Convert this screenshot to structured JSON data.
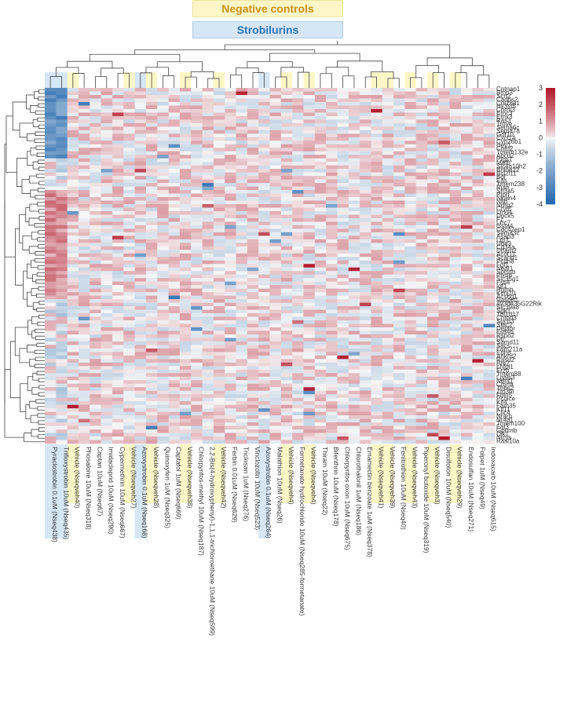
{
  "legend": {
    "negative_controls_label": "Negative controls",
    "strobilurins_label": "Strobilurins",
    "negative_color": "#fdf7c7",
    "strobilurin_color": "#d6e6f4"
  },
  "chart_data": {
    "type": "heatmap",
    "title": "",
    "colorbar": {
      "ticks": [
        3,
        2,
        1,
        0,
        -1,
        -2,
        -3,
        -4
      ],
      "range": [
        -4,
        3
      ],
      "low_color": "#2166ac",
      "mid_color": "#f7f7f7",
      "high_color": "#b2182b"
    },
    "columns": [
      {
        "label": "Pyraclostrobin 0.1uM (Nseq438)",
        "group": "strobilurin"
      },
      {
        "label": "Trifloxystrobin 10uM (Nseq435)",
        "group": "strobilurin"
      },
      {
        "label": "Vehicle (Nseqveh40)",
        "group": "negative"
      },
      {
        "label": "Phosalone 10uM (Nseq318)",
        "group": ""
      },
      {
        "label": "Captan 10uM (Nseq67)",
        "group": ""
      },
      {
        "label": "Imidacloprid 10uM (Nseq290)",
        "group": ""
      },
      {
        "label": "Cypermethrin 10uM (Nseq667)",
        "group": ""
      },
      {
        "label": "Vehicle (Nseqveh27)",
        "group": "negative"
      },
      {
        "label": "Azoxystrobin 0.1uM (Nseq168)",
        "group": "strobilurin"
      },
      {
        "label": "Vehicle (Nseqveh28)",
        "group": "negative"
      },
      {
        "label": "Quinoxyfen 1uM (Nseq325)",
        "group": ""
      },
      {
        "label": "Captafol 1uM (Nseq669)",
        "group": ""
      },
      {
        "label": "Vehicle (Nseqveh38)",
        "group": "negative"
      },
      {
        "label": "Chlorpyrifos-methyl 10uM (Nseq187)",
        "group": ""
      },
      {
        "label": "2,2-Bis(4-hydroxyphenyl)-1,1,1-trichloroethane 10uM (Nseq599)",
        "group": ""
      },
      {
        "label": "Vehicle (Nseqveh42)",
        "group": "negative"
      },
      {
        "label": "Ferbin 0.01uM (Nseq629)",
        "group": ""
      },
      {
        "label": "Triclosan 1uM (Nseq276)",
        "group": ""
      },
      {
        "label": "Vinclozolin 10uM (Nseq523)",
        "group": ""
      },
      {
        "label": "Azoxystrobin 0.1uM (Nseq264)",
        "group": "strobilurin"
      },
      {
        "label": "Malathion 10uM (Nseq26)",
        "group": ""
      },
      {
        "label": "Vehicle (Nseqveh4)",
        "group": "negative"
      },
      {
        "label": "Formetanate hydrochloride 10uM (Nseq285-formetanate)",
        "group": ""
      },
      {
        "label": "Vehicle (Nseqveh4)",
        "group": "negative"
      },
      {
        "label": "Thiram 10uM (Nseq22)",
        "group": ""
      },
      {
        "label": "Bifenthrin 10uM (Nseq178)",
        "group": ""
      },
      {
        "label": "Chlorpyrifos oxon 10uM (Nseq675)",
        "group": ""
      },
      {
        "label": "Chlorothalonil 1uM (Nseq186)",
        "group": ""
      },
      {
        "label": "Emamectin benzoate 1uM (Nseq378)",
        "group": ""
      },
      {
        "label": "Vehicle (Nseqveh41)",
        "group": "negative"
      },
      {
        "label": "Vehicle (Nseqveh39)",
        "group": "negative"
      },
      {
        "label": "Fenitrothion 10uM (Nseq40)",
        "group": ""
      },
      {
        "label": "Vehicle (Nseqveh43)",
        "group": "negative"
      },
      {
        "label": "Piperonyl butoxide 10uM (Nseq319)",
        "group": ""
      },
      {
        "label": "Vehicle (Nseqveh3)",
        "group": "negative"
      },
      {
        "label": "Disulfoton 10uM (Nseq540)",
        "group": ""
      },
      {
        "label": "Vehicle (Nseqveh29)",
        "group": "negative"
      },
      {
        "label": "Endosulfan 10uM (Nseq271)",
        "group": ""
      },
      {
        "label": "Folpet 1uM (Nseq49)",
        "group": ""
      },
      {
        "label": "Indoxacarb 10uM (Nseq615)",
        "group": ""
      }
    ],
    "rows": [
      "Cntnap1",
      "Bmp3",
      "Scrt2",
      "Cadps2",
      "Col18a1",
      "Hs3st5",
      "Chrm3",
      "Emc3",
      "Emx3",
      "Ras3",
      "Trove",
      "Sema6c",
      "Sema7a",
      "Gdf10",
      "Cxcl14",
      "Cyp26b1",
      "Hey1",
      "Cntn2",
      "Tmem132e",
      "Abcd2",
      "Ptgs1",
      "Mafb",
      "Slc4a10h2",
      "Bhlhe22",
      "Bcl2l11",
      "Bdl",
      "Eas",
      "Tmem238",
      "Rian",
      "Sh3a5",
      "Ptprj",
      "Nkain4",
      "Nfib",
      "Ndrg2",
      "Cryl2",
      "Lmo4",
      "Dock5",
      "Fz",
      "Lrrc7",
      "Gsta4",
      "Cdc42ep1",
      "Sema3c",
      "Asap3",
      "Lrp1",
      "Ube3",
      "Cd34a",
      "Dtfam2",
      "Acot11",
      "Scand1",
      "Pcdh8",
      "Fgf1",
      "Neat1",
      "Sptssb",
      "Plxnb",
      "Slc35g1",
      "Fstl4",
      "Igf1",
      "Rgmb",
      "Kcnj10",
      "Acsbg1",
      "Rasgrf1",
      "4930435G22Rik",
      "Slc39a8",
      "Sgk1",
      "Tbl1d17",
      "Cntnd3",
      "Sgcb3",
      "Stac2",
      "Deptor",
      "Fstl4b",
      "Rspo2",
      "Dtl",
      "Samd11",
      "Sacs",
      "Fam211a",
      "Ephb",
      "Ankrd2",
      "Rasd2",
      "Bre2",
      "Lhfpl1",
      "Erzb",
      "Tmem88",
      "Lgals3",
      "Ndnf1",
      "Cmrfa",
      "Thbs2",
      "Zfp36l",
      "Fbln5",
      "Pcolce",
      "Klf4",
      "Fam35",
      "Kif11",
      "Clic4",
      "Nrarp",
      "Nr4a1",
      "Tmem100",
      "Fat3",
      "Gpnmb",
      "Dlk1",
      "Nlcys",
      "Rasl10a"
    ],
    "row_order": "hierarchical clustering",
    "column_order": "hierarchical clustering"
  }
}
